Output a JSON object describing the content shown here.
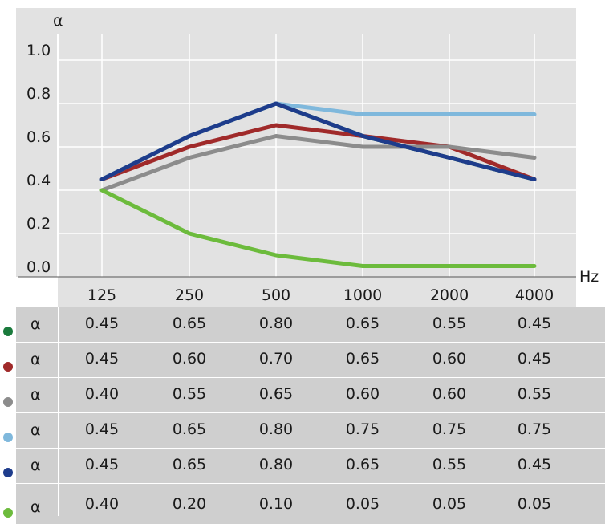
{
  "chart_data": {
    "type": "line",
    "ylabel": "α",
    "xlabel": "Hz",
    "categories": [
      "125",
      "250",
      "500",
      "1000",
      "2000",
      "4000"
    ],
    "ylim": [
      0,
      1.1
    ],
    "yticks": [
      "0.0",
      "0.2",
      "0.4",
      "0.6",
      "0.8",
      "1.0"
    ],
    "grid": true,
    "series": [
      {
        "color": "#1a7a3c",
        "values": [
          0.45,
          0.65,
          0.8,
          0.65,
          0.55,
          0.45
        ]
      },
      {
        "color": "#a02a2a",
        "values": [
          0.45,
          0.6,
          0.7,
          0.65,
          0.6,
          0.45
        ]
      },
      {
        "color": "#8c8c8c",
        "values": [
          0.4,
          0.55,
          0.65,
          0.6,
          0.6,
          0.55
        ]
      },
      {
        "color": "#7fb8dc",
        "values": [
          0.45,
          0.65,
          0.8,
          0.75,
          0.75,
          0.75
        ]
      },
      {
        "color": "#1e3c8c",
        "values": [
          0.45,
          0.65,
          0.8,
          0.65,
          0.55,
          0.45
        ]
      },
      {
        "color": "#6cbb3c",
        "values": [
          0.4,
          0.2,
          0.1,
          0.05,
          0.05,
          0.05
        ]
      }
    ]
  },
  "table": {
    "row_symbol": "α",
    "rows": [
      [
        "0.45",
        "0.65",
        "0.80",
        "0.65",
        "0.55",
        "0.45"
      ],
      [
        "0.45",
        "0.60",
        "0.70",
        "0.65",
        "0.60",
        "0.45"
      ],
      [
        "0.40",
        "0.55",
        "0.65",
        "0.60",
        "0.60",
        "0.55"
      ],
      [
        "0.45",
        "0.65",
        "0.80",
        "0.75",
        "0.75",
        "0.75"
      ],
      [
        "0.45",
        "0.65",
        "0.80",
        "0.65",
        "0.55",
        "0.45"
      ],
      [
        "0.40",
        "0.20",
        "0.10",
        "0.05",
        "0.05",
        "0.05"
      ]
    ]
  }
}
